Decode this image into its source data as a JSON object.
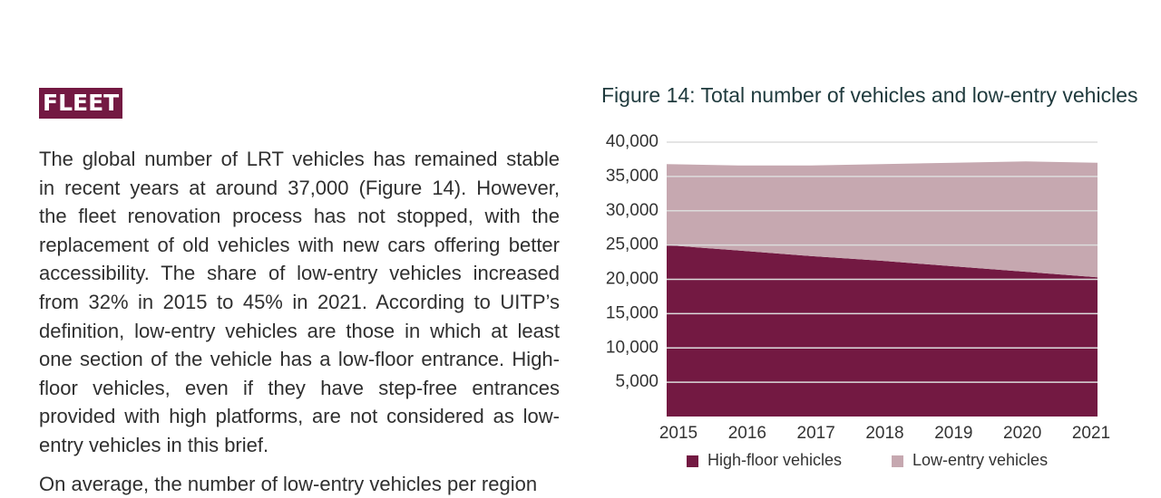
{
  "heading": "FLEET",
  "paragraphs": [
    {
      "lines": [
        "The global number of LRT vehicles has remained stable",
        "in recent years at around 37,000 (Figure 14). However,",
        "the fleet renovation process has not stopped, with the",
        "replacement of old vehicles with new cars offering better",
        "accessibility. The share of low-entry vehicles increased",
        "from 32% in 2015 to 45% in 2021. According to UITP’s",
        "definition, low-entry vehicles are those in which at least",
        "one section of the vehicle has a low-floor entrance. High-",
        "floor vehicles, even if they have step-free entrances",
        "provided with high platforms, are not considered as low-",
        "entry vehicles in this brief."
      ]
    },
    {
      "lines": [
        "On average, the number of low-entry vehicles per region"
      ]
    }
  ],
  "chart_data": {
    "type": "stacked-area",
    "title": "Figure 14: Total number of vehicles and low-entry vehicles",
    "categories": [
      "2015",
      "2016",
      "2017",
      "2018",
      "2019",
      "2020",
      "2021"
    ],
    "series": [
      {
        "name": "High-floor vehicles",
        "color": "#731942",
        "values": [
          25000,
          24200,
          23400,
          22700,
          21900,
          21100,
          20300
        ]
      },
      {
        "name": "Low-entry vehicles",
        "color": "#c6a8b0",
        "values": [
          11800,
          12400,
          13200,
          14100,
          15100,
          16100,
          16700
        ]
      }
    ],
    "ylim": [
      0,
      40000
    ],
    "yticks": [
      {
        "value": 5000,
        "label": "5,000"
      },
      {
        "value": 10000,
        "label": "10,000"
      },
      {
        "value": 15000,
        "label": "15,000"
      },
      {
        "value": 20000,
        "label": "20,000"
      },
      {
        "value": 25000,
        "label": "25,000"
      },
      {
        "value": 30000,
        "label": "30,000"
      },
      {
        "value": 35000,
        "label": "35,000"
      },
      {
        "value": 40000,
        "label": "40,000"
      }
    ],
    "grid": true,
    "legend": "bottom"
  }
}
